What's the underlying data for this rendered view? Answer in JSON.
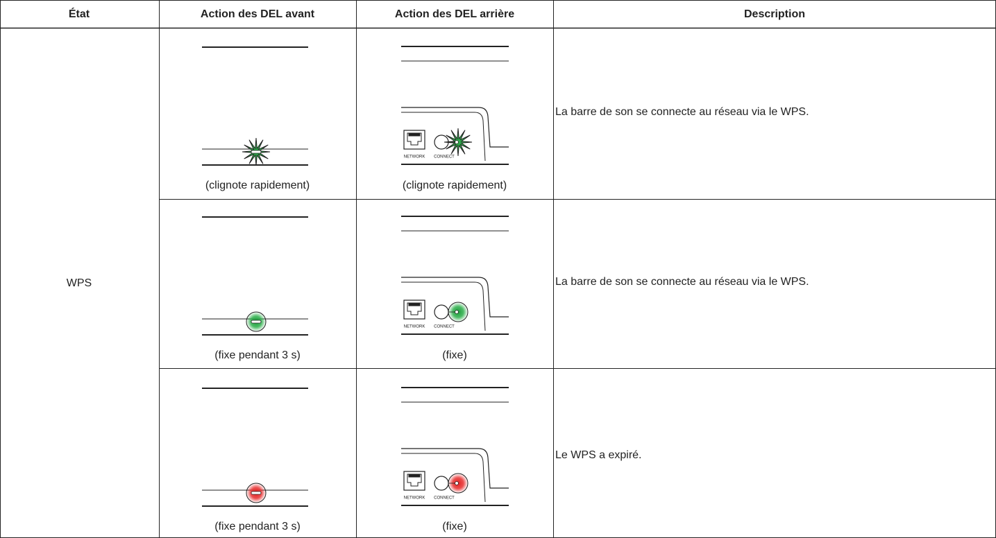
{
  "table": {
    "header": [
      "État",
      "Action des DEL avant",
      "Action des DEL arrière",
      "Description"
    ],
    "state": "WPS",
    "rear_labels": {
      "network": "NETWORK",
      "connect": "CONNECT"
    },
    "rows": [
      {
        "front_caption": "(clignote rapidement)",
        "rear_caption": "(clignote rapidement)",
        "description": "La barre de son se connecte au réseau via le WPS."
      },
      {
        "front_caption": "(fixe pendant 3 s)",
        "rear_caption": "(fixe)",
        "description": "La barre de son se connecte au réseau via le WPS."
      },
      {
        "front_caption": "(fixe pendant 3 s)",
        "rear_caption": "(fixe)",
        "description": "Le WPS a expiré."
      }
    ]
  }
}
